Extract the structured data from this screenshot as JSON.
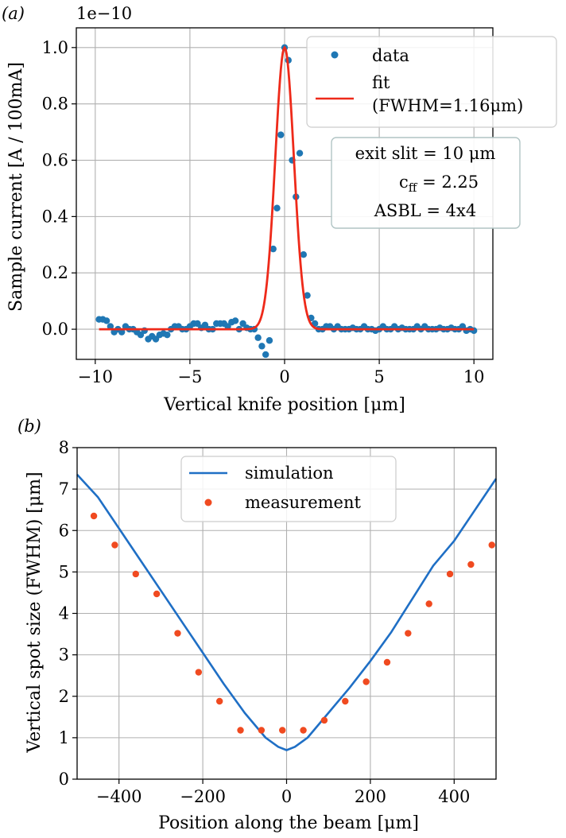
{
  "chart_data": [
    {
      "id": "a",
      "panel_label": "(a)",
      "type": "scatter",
      "title": "",
      "scale_label": "1e−10",
      "xlabel": "Vertical knife position [μm]",
      "ylabel": "Sample current [A / 100mA]",
      "xlim": [
        -11.0,
        11.0
      ],
      "ylim": [
        -0.107,
        1.07
      ],
      "xticks": [
        -10,
        -5,
        0,
        5,
        10
      ],
      "xtick_labels": [
        "−10",
        "−5",
        "0",
        "5",
        "10"
      ],
      "yticks": [
        0.0,
        0.2,
        0.4,
        0.6,
        0.8,
        1.0
      ],
      "ytick_labels": [
        "0.0",
        "0.2",
        "0.4",
        "0.6",
        "0.8",
        "1.0"
      ],
      "grid": true,
      "series": [
        {
          "name": "data",
          "kind": "points",
          "color": "#1f77b4",
          "x": [
            -9.8,
            -9.6,
            -9.4,
            -9.2,
            -9.0,
            -8.8,
            -8.6,
            -8.4,
            -8.2,
            -8.0,
            -7.8,
            -7.6,
            -7.4,
            -7.2,
            -7.0,
            -6.8,
            -6.6,
            -6.4,
            -6.2,
            -6.0,
            -5.8,
            -5.6,
            -5.4,
            -5.2,
            -5.0,
            -4.8,
            -4.6,
            -4.4,
            -4.2,
            -4.0,
            -3.8,
            -3.6,
            -3.4,
            -3.2,
            -3.0,
            -2.8,
            -2.6,
            -2.4,
            -2.2,
            -2.0,
            -1.8,
            -1.6,
            -1.4,
            -1.2,
            -1.0,
            -0.8,
            -0.6,
            -0.4,
            -0.2,
            0.0,
            0.2,
            0.4,
            0.6,
            0.8,
            1.0,
            1.2,
            1.4,
            1.6,
            1.8,
            2.0,
            2.2,
            2.4,
            2.6,
            2.8,
            3.0,
            3.2,
            3.4,
            3.6,
            3.8,
            4.0,
            4.2,
            4.4,
            4.6,
            4.8,
            5.0,
            5.2,
            5.4,
            5.6,
            5.8,
            6.0,
            6.2,
            6.4,
            6.6,
            6.8,
            7.0,
            7.2,
            7.4,
            7.6,
            7.8,
            8.0,
            8.2,
            8.4,
            8.6,
            8.8,
            9.0,
            9.2,
            9.4,
            9.6,
            9.8,
            10.0
          ],
          "values": [
            0.035,
            0.035,
            0.03,
            0.01,
            -0.01,
            0.0,
            -0.01,
            0.01,
            0.0,
            0.0,
            -0.01,
            -0.02,
            -0.005,
            -0.035,
            -0.025,
            -0.035,
            -0.02,
            -0.015,
            -0.02,
            0.0,
            0.01,
            0.01,
            0.0,
            0.0,
            0.01,
            0.02,
            0.02,
            0.005,
            0.015,
            0.0,
            0.0,
            0.02,
            0.02,
            0.02,
            0.01,
            0.025,
            0.03,
            0.0,
            0.02,
            0.005,
            0.0,
            0.0,
            -0.03,
            -0.06,
            -0.09,
            -0.04,
            0.285,
            0.43,
            0.69,
            1.0,
            0.955,
            0.6,
            0.47,
            0.625,
            0.265,
            0.12,
            0.04,
            0.02,
            0.0,
            0.0,
            0.01,
            0.01,
            0.0,
            0.01,
            0.0,
            0.0,
            0.0,
            0.005,
            0.0,
            0.0,
            0.01,
            0.0,
            0.0,
            -0.005,
            0.0,
            0.01,
            0.0,
            0.0,
            0.01,
            0.0,
            0.005,
            0.0,
            0.0,
            0.0,
            0.01,
            0.0,
            0.01,
            0.0,
            0.0,
            0.0,
            0.005,
            0.0,
            0.0,
            0.005,
            0.0,
            0.0,
            0.01,
            -0.005,
            0.0,
            -0.005
          ]
        },
        {
          "name": "fit\n(FWHM=1.16μm)",
          "kind": "gaussian",
          "color": "#ee2a1a",
          "amplitude": 1.0,
          "center": 0.0,
          "fwhm": 1.16,
          "offset": 0.0,
          "x_range": [
            -9.8,
            10.0
          ]
        }
      ],
      "legend": {
        "location": "upper right",
        "entries": [
          {
            "label": "data",
            "marker": "dot",
            "color": "#1f77b4"
          },
          {
            "label_line1": "fit",
            "label_line2": "(FWHM=1.16μm)",
            "marker": "line",
            "color": "#ee2a1a"
          }
        ]
      },
      "annotation": {
        "location": "right",
        "lines": [
          "exit slit = 10 μm",
          "c ff = 2.25",
          "ASBL = 4x4"
        ],
        "line1": "exit slit = 10 μm",
        "line2_prefix": "c",
        "line2_sub": "ff",
        "line2_suffix": " = 2.25",
        "line3": "ASBL = 4x4"
      }
    },
    {
      "id": "b",
      "panel_label": "(b)",
      "type": "line",
      "title": "",
      "xlabel": "Position along the beam [μm]",
      "ylabel": "Vertical spot size (FWHM) [μm]",
      "xlim": [
        -500,
        500
      ],
      "ylim": [
        0,
        8
      ],
      "xticks": [
        -400,
        -200,
        0,
        200,
        400
      ],
      "xtick_labels": [
        "−400",
        "−200",
        "0",
        "200",
        "400"
      ],
      "yticks": [
        0,
        1,
        2,
        3,
        4,
        5,
        6,
        7,
        8
      ],
      "ytick_labels": [
        "0",
        "1",
        "2",
        "3",
        "4",
        "5",
        "6",
        "7",
        "8"
      ],
      "grid": true,
      "series": [
        {
          "name": "simulation",
          "kind": "line",
          "color": "#1f6fc5",
          "x": [
            -500,
            -450,
            -400,
            -350,
            -300,
            -250,
            -200,
            -150,
            -100,
            -50,
            -20,
            0,
            20,
            50,
            100,
            150,
            200,
            250,
            300,
            350,
            400,
            450,
            500
          ],
          "values": [
            7.35,
            6.8,
            6.05,
            5.3,
            4.55,
            3.8,
            3.05,
            2.3,
            1.6,
            1.0,
            0.78,
            0.7,
            0.78,
            1.0,
            1.6,
            2.2,
            2.85,
            3.55,
            4.35,
            5.15,
            5.75,
            6.5,
            7.25
          ]
        },
        {
          "name": "measurement",
          "kind": "points",
          "color": "#f04a20",
          "x": [
            -460,
            -410,
            -360,
            -310,
            -260,
            -210,
            -160,
            -110,
            -60,
            -10,
            40,
            90,
            140,
            190,
            240,
            290,
            340,
            390,
            440,
            490
          ],
          "values": [
            6.35,
            5.65,
            4.95,
            4.47,
            3.52,
            2.58,
            1.88,
            1.18,
            1.18,
            1.18,
            1.18,
            1.42,
            1.88,
            2.35,
            2.82,
            3.52,
            4.23,
            4.95,
            5.18,
            5.65
          ]
        }
      ],
      "legend": {
        "location": "upper center",
        "entries": [
          {
            "label": "simulation",
            "marker": "line",
            "color": "#1f6fc5"
          },
          {
            "label": "measurement",
            "marker": "dot",
            "color": "#f04a20"
          }
        ]
      }
    }
  ]
}
